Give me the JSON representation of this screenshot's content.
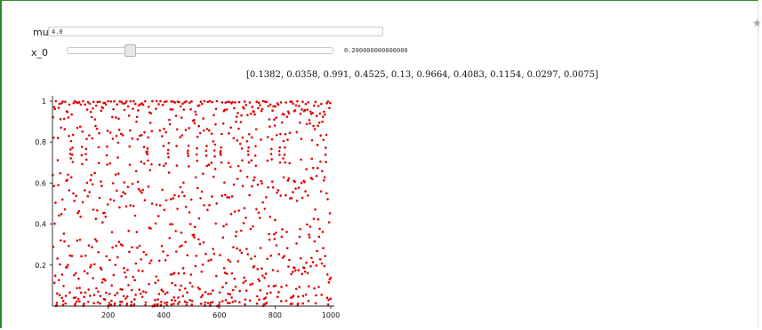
{
  "controls": {
    "mu": {
      "label": "mu",
      "value": "4.0"
    },
    "x0": {
      "label": "x_0",
      "value_text": "0.200000000000000",
      "slider_fraction": 0.2
    }
  },
  "output": {
    "orbit": "[0.1382, 0.0358, 0.991, 0.4525, 0.13, 0.9664, 0.4083, 0.1154, 0.0297, 0.0075]"
  },
  "icons": {
    "star": "star-icon"
  },
  "colors": {
    "cell_border": "#2f8a2f",
    "points": "#e00000"
  },
  "chart_data": {
    "type": "scatter",
    "series": [
      {
        "generator": "logistic map x_{n+1} = mu * x_n * (1 - x_n)",
        "mu": 4.0,
        "x0": 0.2,
        "n_points": 1000
      }
    ],
    "xlim": [
      0,
      1000
    ],
    "ylim": [
      0,
      1
    ],
    "x_ticks": [
      "200",
      "400",
      "600",
      "800",
      "1000"
    ],
    "y_ticks": [
      "0.2",
      "0.4",
      "0.6",
      "0.8",
      "1"
    ],
    "grid": false
  }
}
